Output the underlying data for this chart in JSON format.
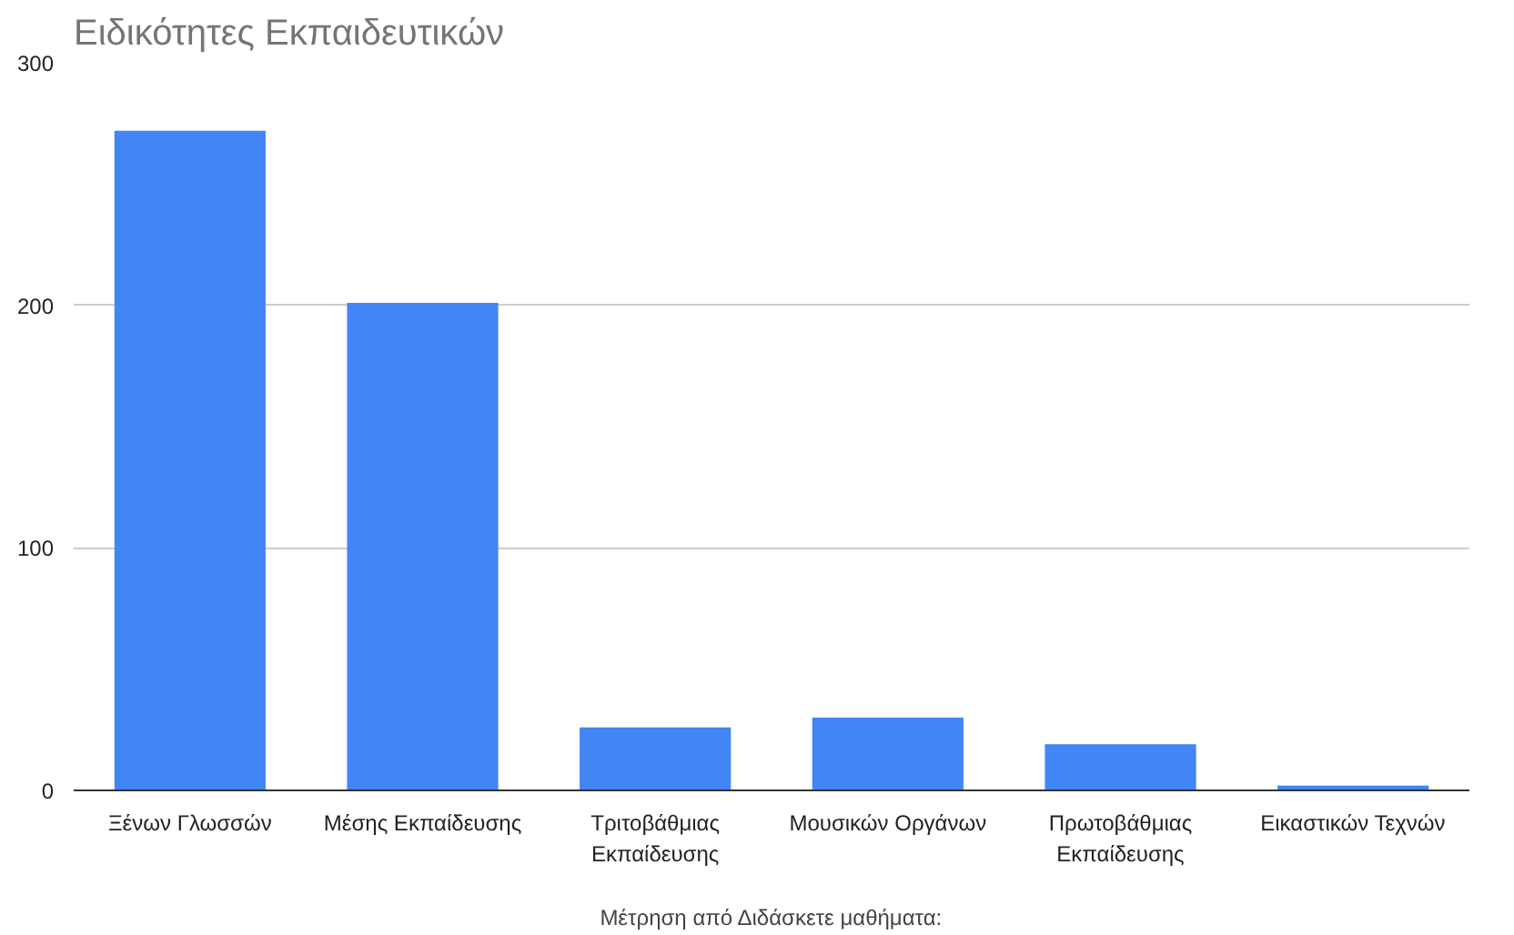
{
  "chart_data": {
    "type": "bar",
    "title": "Ειδικότητες Εκπαιδευτικών",
    "xlabel": "Μέτρηση από Διδάσκετε μαθήματα:",
    "categories": [
      "Ξένων Γλωσσών",
      "Μέσης Εκπαίδευσης",
      "Τριτοβάθμιας Εκπαίδευσης",
      "Μουσικών Οργάνων",
      "Πρωτοβάθμιας Εκπαίδευσης",
      "Εικαστικών Τεχνών"
    ],
    "values": [
      272,
      201,
      26,
      30,
      19,
      2
    ],
    "color": "#4285f4",
    "ylim": [
      0,
      300
    ],
    "yticks": [
      0,
      100,
      200,
      300
    ],
    "grid": "y"
  }
}
